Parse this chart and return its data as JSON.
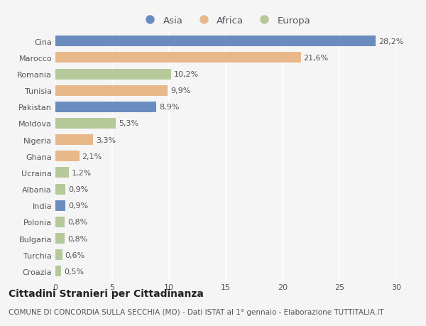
{
  "countries": [
    "Cina",
    "Marocco",
    "Romania",
    "Tunisia",
    "Pakistan",
    "Moldova",
    "Nigeria",
    "Ghana",
    "Ucraina",
    "Albania",
    "India",
    "Polonia",
    "Bulgaria",
    "Turchia",
    "Croazia"
  ],
  "values": [
    28.2,
    21.6,
    10.2,
    9.9,
    8.9,
    5.3,
    3.3,
    2.1,
    1.2,
    0.9,
    0.9,
    0.8,
    0.8,
    0.6,
    0.5
  ],
  "labels": [
    "28,2%",
    "21,6%",
    "10,2%",
    "9,9%",
    "8,9%",
    "5,3%",
    "3,3%",
    "2,1%",
    "1,2%",
    "0,9%",
    "0,9%",
    "0,8%",
    "0,8%",
    "0,6%",
    "0,5%"
  ],
  "continents": [
    "Asia",
    "Africa",
    "Europa",
    "Africa",
    "Asia",
    "Europa",
    "Africa",
    "Africa",
    "Europa",
    "Europa",
    "Asia",
    "Europa",
    "Europa",
    "Europa",
    "Europa"
  ],
  "colors": {
    "Asia": "#6b8cbf",
    "Africa": "#e8b88a",
    "Europa": "#b5c99a"
  },
  "background_color": "#f5f5f5",
  "title": "Cittadini Stranieri per Cittadinanza",
  "subtitle": "COMUNE DI CONCORDIA SULLA SECCHIA (MO) - Dati ISTAT al 1° gennaio - Elaborazione TUTTITALIA.IT",
  "xlim": [
    0,
    30
  ],
  "xticks": [
    0,
    5,
    10,
    15,
    20,
    25,
    30
  ],
  "grid_color": "#ffffff",
  "bar_height": 0.65,
  "title_fontsize": 10,
  "subtitle_fontsize": 7.5,
  "label_fontsize": 8,
  "tick_fontsize": 8,
  "legend_fontsize": 9.5
}
